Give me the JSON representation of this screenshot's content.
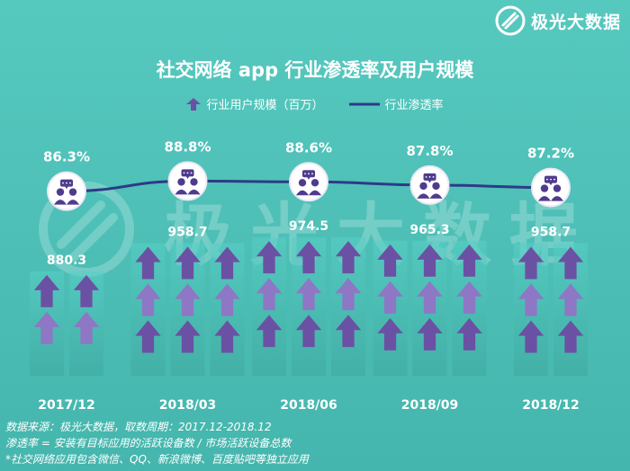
{
  "brand": {
    "name": "极光大数据"
  },
  "colors": {
    "arrow": "#6b51a3",
    "arrow_light": "#8e77c4",
    "line": "#2e3a86",
    "bubble_icon": "#4f3b8e",
    "text": "#ffffff"
  },
  "chart_data": {
    "type": "bar",
    "title": "社交网络 app 行业渗透率及用户规模",
    "categories": [
      "2017/12",
      "2018/03",
      "2018/06",
      "2018/09",
      "2018/12"
    ],
    "series": [
      {
        "name": "行业用户规模（百万）",
        "type": "bar",
        "values": [
          880.3,
          958.7,
          974.5,
          965.3,
          958.7
        ]
      },
      {
        "name": "行业渗透率",
        "type": "line",
        "values": [
          86.3,
          88.8,
          88.6,
          87.8,
          87.2
        ],
        "value_labels": [
          "86.3%",
          "88.8%",
          "88.6%",
          "87.8%",
          "87.2%"
        ]
      }
    ],
    "value_labels": [
      "880.3",
      "958.7",
      "974.5",
      "965.3",
      "958.7"
    ],
    "legend": "top-center",
    "grid": false
  },
  "footnotes": [
    "数据来源：极光大数据，取数周期：2017.12-2018.12",
    "渗透率 = 安装有目标应用的活跃设备数 / 市场活跃设备总数",
    "*社交网络应用包含微信、QQ、新浪微博、百度贴吧等独立应用"
  ]
}
